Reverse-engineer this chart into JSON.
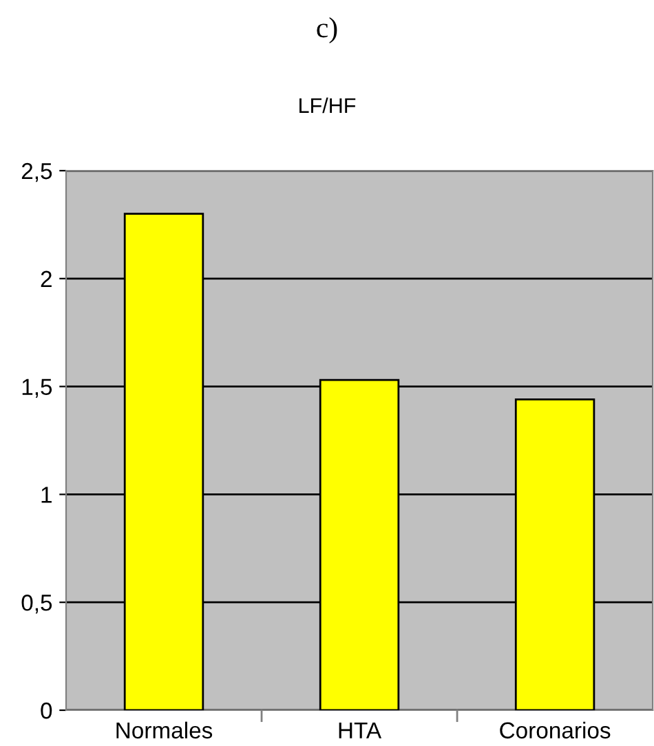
{
  "chart_data": {
    "type": "bar",
    "title": "c)",
    "subtitle": "LF/HF",
    "categories": [
      "Normales",
      "HTA",
      "Coronarios"
    ],
    "values": [
      2.3,
      1.53,
      1.44
    ],
    "color": "#ffff00",
    "ylim": [
      0,
      2.5
    ],
    "yticks": [
      0,
      {
        "value": 0.5,
        "label": "0,5"
      },
      1,
      {
        "value": 1.5,
        "label": "1,5"
      },
      2,
      {
        "value": 2.5,
        "label": "2,5"
      }
    ],
    "grid": "y"
  }
}
